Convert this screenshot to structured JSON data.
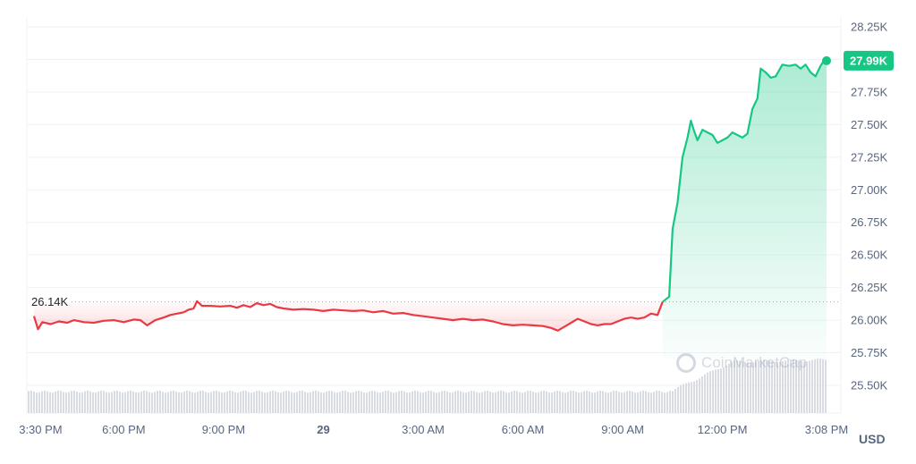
{
  "chart_data": {
    "type": "area",
    "currency": "USD",
    "watermark": "CoinMarketCap",
    "reference_label": "26.14K",
    "reference_value": 26140,
    "current_label": "27.99K",
    "y_ticks": [
      "28.25K",
      "28.00K",
      "27.75K",
      "27.50K",
      "27.25K",
      "27.00K",
      "26.75K",
      "26.50K",
      "26.25K",
      "26.00K",
      "25.75K",
      "25.50K"
    ],
    "y_tick_values": [
      28250,
      28000,
      27750,
      27500,
      27250,
      27000,
      26750,
      26500,
      26250,
      26000,
      25750,
      25500
    ],
    "ylim": [
      25400,
      28320
    ],
    "x_ticks": [
      {
        "label": "3:30 PM",
        "hour": 0.0,
        "bold": false
      },
      {
        "label": "6:00 PM",
        "hour": 2.5,
        "bold": false
      },
      {
        "label": "9:00 PM",
        "hour": 5.5,
        "bold": false
      },
      {
        "label": "29",
        "hour": 8.5,
        "bold": true
      },
      {
        "label": "3:00 AM",
        "hour": 11.5,
        "bold": false
      },
      {
        "label": "6:00 AM",
        "hour": 14.5,
        "bold": false
      },
      {
        "label": "9:00 AM",
        "hour": 17.5,
        "bold": false
      },
      {
        "label": "12:00 PM",
        "hour": 20.5,
        "bold": false
      },
      {
        "label": "3:08 PM",
        "hour": 23.63,
        "bold": false
      }
    ],
    "x_range_hours": [
      -0.2,
      23.63
    ],
    "colors": {
      "up": "#16c784",
      "down": "#ea3943",
      "volume": "#d9dde3",
      "badge": "#16c784"
    },
    "series": [
      {
        "values": [
          [
            -0.2,
            26030
          ],
          [
            -0.08,
            25930
          ],
          [
            0.05,
            25985
          ],
          [
            0.3,
            25970
          ],
          [
            0.55,
            25990
          ],
          [
            0.8,
            25980
          ],
          [
            1.0,
            26000
          ],
          [
            1.3,
            25985
          ],
          [
            1.6,
            25980
          ],
          [
            1.9,
            25995
          ],
          [
            2.2,
            26000
          ],
          [
            2.5,
            25985
          ],
          [
            2.8,
            26005
          ],
          [
            3.0,
            26000
          ],
          [
            3.2,
            25960
          ],
          [
            3.45,
            26000
          ],
          [
            3.7,
            26020
          ],
          [
            3.9,
            26040
          ],
          [
            4.1,
            26050
          ],
          [
            4.3,
            26060
          ],
          [
            4.45,
            26080
          ],
          [
            4.6,
            26090
          ],
          [
            4.7,
            26145
          ],
          [
            4.85,
            26110
          ],
          [
            5.1,
            26110
          ],
          [
            5.4,
            26105
          ],
          [
            5.7,
            26110
          ],
          [
            5.9,
            26095
          ],
          [
            6.1,
            26115
          ],
          [
            6.3,
            26100
          ],
          [
            6.5,
            26130
          ],
          [
            6.7,
            26115
          ],
          [
            6.9,
            26125
          ],
          [
            7.1,
            26100
          ],
          [
            7.3,
            26090
          ],
          [
            7.6,
            26080
          ],
          [
            7.9,
            26085
          ],
          [
            8.2,
            26080
          ],
          [
            8.5,
            26070
          ],
          [
            8.8,
            26080
          ],
          [
            9.1,
            26075
          ],
          [
            9.4,
            26070
          ],
          [
            9.7,
            26075
          ],
          [
            10.0,
            26060
          ],
          [
            10.3,
            26070
          ],
          [
            10.6,
            26050
          ],
          [
            10.9,
            26055
          ],
          [
            11.2,
            26040
          ],
          [
            11.5,
            26030
          ],
          [
            11.8,
            26020
          ],
          [
            12.1,
            26010
          ],
          [
            12.4,
            26000
          ],
          [
            12.7,
            26010
          ],
          [
            13.0,
            26000
          ],
          [
            13.3,
            26005
          ],
          [
            13.6,
            25990
          ],
          [
            13.9,
            25970
          ],
          [
            14.2,
            25960
          ],
          [
            14.5,
            25965
          ],
          [
            14.8,
            25960
          ],
          [
            15.1,
            25955
          ],
          [
            15.35,
            25940
          ],
          [
            15.55,
            25920
          ],
          [
            15.75,
            25950
          ],
          [
            15.95,
            25980
          ],
          [
            16.15,
            26010
          ],
          [
            16.35,
            25990
          ],
          [
            16.55,
            25970
          ],
          [
            16.75,
            25960
          ],
          [
            16.95,
            25970
          ],
          [
            17.15,
            25970
          ],
          [
            17.35,
            25990
          ],
          [
            17.55,
            26010
          ],
          [
            17.75,
            26020
          ],
          [
            17.95,
            26010
          ],
          [
            18.15,
            26020
          ],
          [
            18.35,
            26050
          ],
          [
            18.55,
            26040
          ],
          [
            18.7,
            26140
          ]
        ],
        "color_key": "down"
      },
      {
        "values": [
          [
            18.7,
            26140
          ],
          [
            18.9,
            26180
          ],
          [
            19.0,
            26700
          ],
          [
            19.15,
            26900
          ],
          [
            19.3,
            27250
          ],
          [
            19.45,
            27400
          ],
          [
            19.55,
            27530
          ],
          [
            19.65,
            27450
          ],
          [
            19.75,
            27380
          ],
          [
            19.9,
            27460
          ],
          [
            20.05,
            27440
          ],
          [
            20.2,
            27420
          ],
          [
            20.35,
            27360
          ],
          [
            20.5,
            27380
          ],
          [
            20.65,
            27400
          ],
          [
            20.8,
            27440
          ],
          [
            20.95,
            27420
          ],
          [
            21.1,
            27400
          ],
          [
            21.25,
            27430
          ],
          [
            21.4,
            27620
          ],
          [
            21.55,
            27700
          ],
          [
            21.65,
            27930
          ],
          [
            21.8,
            27900
          ],
          [
            21.95,
            27860
          ],
          [
            22.1,
            27870
          ],
          [
            22.3,
            27960
          ],
          [
            22.5,
            27950
          ],
          [
            22.7,
            27960
          ],
          [
            22.85,
            27930
          ],
          [
            23.0,
            27960
          ],
          [
            23.15,
            27900
          ],
          [
            23.3,
            27870
          ],
          [
            23.45,
            27950
          ],
          [
            23.55,
            27990
          ],
          [
            23.63,
            27990
          ]
        ],
        "color_key": "up"
      }
    ],
    "volume_note": "relative volume bars",
    "volume": {
      "start_level": 0.22,
      "step_hour": 18.9,
      "late_level": 0.55
    }
  }
}
